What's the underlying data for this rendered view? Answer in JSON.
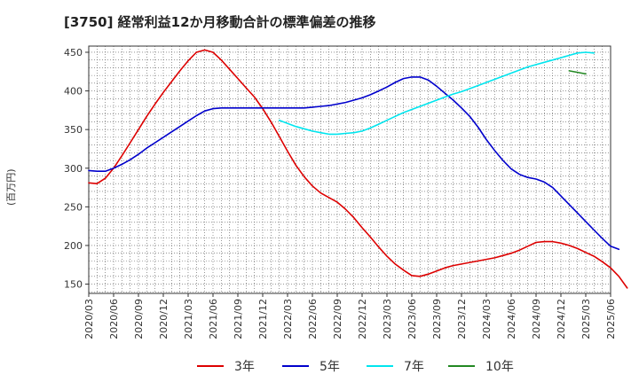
{
  "chart_data": {
    "type": "line",
    "title": "[3750]  経常利益12か月移動合計の標準偏差の推移",
    "ylabel": "(百万円)",
    "xlabel": "",
    "ylim": [
      138,
      458
    ],
    "y_ticks": [
      150,
      200,
      250,
      300,
      350,
      400,
      450
    ],
    "x_ticks": [
      "2020/03",
      "2020/06",
      "2020/09",
      "2020/12",
      "2021/03",
      "2021/06",
      "2021/09",
      "2021/12",
      "2022/03",
      "2022/06",
      "2022/09",
      "2022/12",
      "2023/03",
      "2023/06",
      "2023/09",
      "2023/12",
      "2024/03",
      "2024/06",
      "2024/09",
      "2024/12",
      "2025/03",
      "2025/06"
    ],
    "grid": true,
    "legend_position": "bottom",
    "series": [
      {
        "name": "3年",
        "color": "#dd0000",
        "start": "2020/03",
        "values": [
          281,
          280,
          287,
          300,
          316,
          333,
          350,
          367,
          383,
          398,
          412,
          426,
          439,
          450,
          453,
          450,
          440,
          428,
          416,
          404,
          392,
          377,
          360,
          341,
          322,
          304,
          289,
          277,
          268,
          262,
          256,
          247,
          236,
          223,
          211,
          198,
          186,
          176,
          168,
          161,
          160,
          163,
          167,
          171,
          174,
          176,
          178,
          180,
          182,
          184,
          187,
          190,
          194,
          199,
          204,
          205,
          205,
          203,
          200,
          196,
          191,
          186,
          179,
          171,
          160,
          145
        ]
      },
      {
        "name": "5年",
        "color": "#0000cc",
        "start": "2020/03",
        "values": [
          297,
          296,
          296,
          300,
          305,
          311,
          318,
          326,
          333,
          340,
          347,
          354,
          361,
          368,
          374,
          377,
          378,
          378,
          378,
          378,
          378,
          378,
          378,
          378,
          378,
          378,
          378,
          379,
          380,
          381,
          383,
          385,
          388,
          391,
          395,
          400,
          405,
          411,
          416,
          418,
          418,
          414,
          406,
          397,
          388,
          378,
          367,
          353,
          337,
          323,
          310,
          299,
          292,
          288,
          286,
          282,
          275,
          264,
          253,
          242,
          231,
          220,
          209,
          199,
          195
        ]
      },
      {
        "name": "7年",
        "color": "#00e5ee",
        "start": "2022/02",
        "values": [
          362,
          358,
          354,
          351,
          348,
          346,
          344,
          344,
          345,
          346,
          348,
          352,
          357,
          362,
          367,
          372,
          376,
          380,
          384,
          388,
          392,
          396,
          399,
          403,
          407,
          411,
          415,
          419,
          423,
          427,
          431,
          434,
          437,
          440,
          443,
          446,
          449,
          450,
          449
        ]
      },
      {
        "name": "10年",
        "color": "#228822",
        "start": "2025/01",
        "values": [
          426,
          424,
          422
        ]
      }
    ]
  }
}
